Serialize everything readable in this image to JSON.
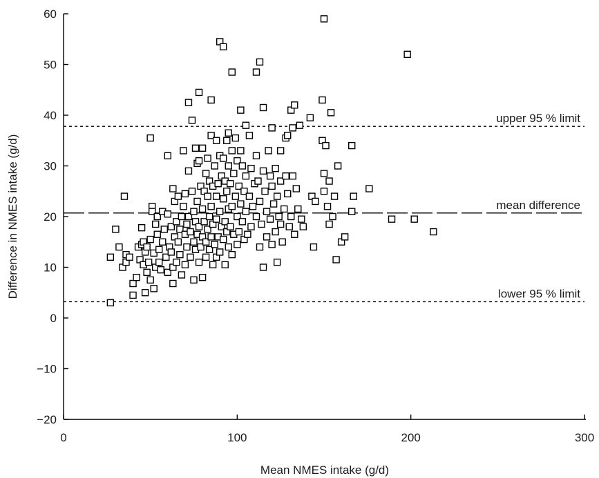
{
  "chart_data": {
    "type": "scatter",
    "xlabel": "Mean NMES intake (g/d)",
    "ylabel": "Difference in NMES intake (g/d)",
    "xlim": [
      0,
      300
    ],
    "ylim": [
      -20,
      60
    ],
    "xticks": [
      0,
      100,
      200,
      300
    ],
    "yticks": [
      -20,
      -10,
      0,
      10,
      20,
      30,
      40,
      50,
      60
    ],
    "grid": false,
    "reference_lines": [
      {
        "name": "upper",
        "label": "upper 95 % limit",
        "y": 37.8,
        "style": "dotted"
      },
      {
        "name": "mean",
        "label": "mean difference",
        "y": 20.7,
        "style": "long-dash"
      },
      {
        "name": "lower",
        "label": "lower 95 % limit",
        "y": 3.2,
        "style": "dotted"
      }
    ],
    "points": [
      [
        27,
        3
      ],
      [
        27,
        12
      ],
      [
        30,
        17.5
      ],
      [
        32,
        14
      ],
      [
        34,
        10
      ],
      [
        35,
        24
      ],
      [
        36,
        12.5
      ],
      [
        36,
        11
      ],
      [
        38,
        12
      ],
      [
        40,
        4.5
      ],
      [
        40,
        6.8
      ],
      [
        42,
        8
      ],
      [
        43,
        14
      ],
      [
        44,
        11.5
      ],
      [
        45,
        17.8
      ],
      [
        45,
        14.5
      ],
      [
        46,
        10.5
      ],
      [
        46,
        15
      ],
      [
        47,
        5
      ],
      [
        47,
        13
      ],
      [
        48,
        9
      ],
      [
        48,
        14
      ],
      [
        49,
        11
      ],
      [
        50,
        15.5
      ],
      [
        50,
        7.5
      ],
      [
        50,
        35.5
      ],
      [
        51,
        22
      ],
      [
        51,
        21
      ],
      [
        52,
        5.8
      ],
      [
        52,
        12.8
      ],
      [
        53,
        18.5
      ],
      [
        53,
        10
      ],
      [
        54,
        20
      ],
      [
        54,
        16.5
      ],
      [
        55,
        13.5
      ],
      [
        55,
        11
      ],
      [
        56,
        9.5
      ],
      [
        57,
        21
      ],
      [
        57,
        15
      ],
      [
        58,
        17.5
      ],
      [
        59,
        12
      ],
      [
        60,
        20.5
      ],
      [
        60,
        32
      ],
      [
        60,
        9
      ],
      [
        61,
        14
      ],
      [
        62,
        18
      ],
      [
        62,
        13
      ],
      [
        63,
        25.5
      ],
      [
        63,
        10
      ],
      [
        63,
        6.8
      ],
      [
        64,
        23
      ],
      [
        64,
        16
      ],
      [
        65,
        19
      ],
      [
        65,
        11
      ],
      [
        66,
        24
      ],
      [
        66,
        15
      ],
      [
        67,
        17.5
      ],
      [
        67,
        12.5
      ],
      [
        68,
        20
      ],
      [
        68,
        8.5
      ],
      [
        69,
        33
      ],
      [
        69,
        22
      ],
      [
        70,
        24.5
      ],
      [
        70,
        16.5
      ],
      [
        70,
        10.5
      ],
      [
        71,
        18.5
      ],
      [
        71,
        14
      ],
      [
        72,
        42.5
      ],
      [
        72,
        29
      ],
      [
        72,
        20
      ],
      [
        73,
        17
      ],
      [
        73,
        12
      ],
      [
        74,
        39
      ],
      [
        74,
        25
      ],
      [
        75,
        21
      ],
      [
        75,
        15
      ],
      [
        75,
        7.5
      ],
      [
        76,
        33.5
      ],
      [
        76,
        19
      ],
      [
        76,
        13.5
      ],
      [
        77,
        30.5
      ],
      [
        77,
        23
      ],
      [
        77,
        16.5
      ],
      [
        78,
        44.5
      ],
      [
        78,
        31
      ],
      [
        78,
        18
      ],
      [
        78,
        11
      ],
      [
        79,
        26
      ],
      [
        79,
        14
      ],
      [
        80,
        33.5
      ],
      [
        80,
        21.5
      ],
      [
        80,
        16
      ],
      [
        80,
        8
      ],
      [
        81,
        25
      ],
      [
        81,
        19
      ],
      [
        82,
        28.5
      ],
      [
        82,
        15
      ],
      [
        82,
        12
      ],
      [
        83,
        31.5
      ],
      [
        83,
        24
      ],
      [
        83,
        17.5
      ],
      [
        84,
        27
      ],
      [
        84,
        20
      ],
      [
        84,
        13.5
      ],
      [
        85,
        43
      ],
      [
        85,
        36
      ],
      [
        85,
        22
      ],
      [
        85,
        16
      ],
      [
        86,
        26
      ],
      [
        86,
        18.5
      ],
      [
        86,
        10.5
      ],
      [
        87,
        30
      ],
      [
        87,
        14.5
      ],
      [
        88,
        35
      ],
      [
        88,
        24
      ],
      [
        88,
        19.5
      ],
      [
        88,
        12
      ],
      [
        89,
        26.5
      ],
      [
        89,
        16
      ],
      [
        90,
        54.5
      ],
      [
        90,
        32
      ],
      [
        90,
        21
      ],
      [
        90,
        13
      ],
      [
        91,
        28
      ],
      [
        91,
        18
      ],
      [
        92,
        53.5
      ],
      [
        92,
        31.5
      ],
      [
        92,
        23.5
      ],
      [
        92,
        15.5
      ],
      [
        93,
        27
      ],
      [
        93,
        19
      ],
      [
        93,
        10.5
      ],
      [
        94,
        35
      ],
      [
        94,
        25
      ],
      [
        94,
        17
      ],
      [
        95,
        36.5
      ],
      [
        95,
        30
      ],
      [
        95,
        21.5
      ],
      [
        95,
        14
      ],
      [
        96,
        26.5
      ],
      [
        96,
        18
      ],
      [
        97,
        48.5
      ],
      [
        97,
        33
      ],
      [
        97,
        22
      ],
      [
        97,
        12.5
      ],
      [
        98,
        28.5
      ],
      [
        98,
        16.5
      ],
      [
        99,
        35.5
      ],
      [
        99,
        24
      ],
      [
        100,
        31
      ],
      [
        100,
        20
      ],
      [
        100,
        14.5
      ],
      [
        101,
        26
      ],
      [
        101,
        17
      ],
      [
        102,
        41
      ],
      [
        102,
        33
      ],
      [
        102,
        22.5
      ],
      [
        103,
        30
      ],
      [
        103,
        19
      ],
      [
        104,
        25
      ],
      [
        104,
        15.5
      ],
      [
        105,
        38
      ],
      [
        105,
        28
      ],
      [
        105,
        21
      ],
      [
        106,
        16.5
      ],
      [
        107,
        36
      ],
      [
        107,
        24
      ],
      [
        108,
        29.5
      ],
      [
        108,
        18
      ],
      [
        109,
        22
      ],
      [
        110,
        26.5
      ],
      [
        111,
        48.5
      ],
      [
        111,
        32
      ],
      [
        111,
        20
      ],
      [
        112,
        27
      ],
      [
        113,
        50.5
      ],
      [
        113,
        23
      ],
      [
        113,
        14
      ],
      [
        114,
        18.5
      ],
      [
        115,
        41.5
      ],
      [
        115,
        29
      ],
      [
        115,
        10
      ],
      [
        116,
        25
      ],
      [
        117,
        21
      ],
      [
        117,
        16
      ],
      [
        118,
        33
      ],
      [
        119,
        28
      ],
      [
        119,
        19.5
      ],
      [
        120,
        37.5
      ],
      [
        120,
        26
      ],
      [
        120,
        14.5
      ],
      [
        121,
        22.5
      ],
      [
        122,
        29.5
      ],
      [
        122,
        17
      ],
      [
        123,
        11
      ],
      [
        123,
        24
      ],
      [
        124,
        20
      ],
      [
        125,
        33
      ],
      [
        125,
        27
      ],
      [
        125,
        18.5
      ],
      [
        126,
        15
      ],
      [
        127,
        21.5
      ],
      [
        128,
        35.5
      ],
      [
        128,
        28
      ],
      [
        129,
        36
      ],
      [
        129,
        24.5
      ],
      [
        130,
        18
      ],
      [
        131,
        41
      ],
      [
        131,
        20
      ],
      [
        132,
        37.5
      ],
      [
        132,
        28
      ],
      [
        133,
        42
      ],
      [
        133,
        16.5
      ],
      [
        134,
        25.5
      ],
      [
        135,
        21.5
      ],
      [
        136,
        38
      ],
      [
        137,
        19.5
      ],
      [
        138,
        18
      ],
      [
        142,
        39.5
      ],
      [
        143,
        24
      ],
      [
        144,
        14
      ],
      [
        145,
        23
      ],
      [
        149,
        43
      ],
      [
        149,
        35
      ],
      [
        150,
        59
      ],
      [
        150,
        28.5
      ],
      [
        150,
        25
      ],
      [
        151,
        34
      ],
      [
        152,
        22
      ],
      [
        153,
        18.5
      ],
      [
        153,
        27
      ],
      [
        154,
        40.5
      ],
      [
        155,
        20
      ],
      [
        156,
        24
      ],
      [
        157,
        11.5
      ],
      [
        158,
        30
      ],
      [
        160,
        15
      ],
      [
        162,
        16
      ],
      [
        166,
        34
      ],
      [
        166,
        21
      ],
      [
        167,
        24
      ],
      [
        176,
        25.5
      ],
      [
        198,
        52
      ],
      [
        189,
        19.5
      ],
      [
        202,
        19.5
      ],
      [
        213,
        17
      ]
    ]
  }
}
